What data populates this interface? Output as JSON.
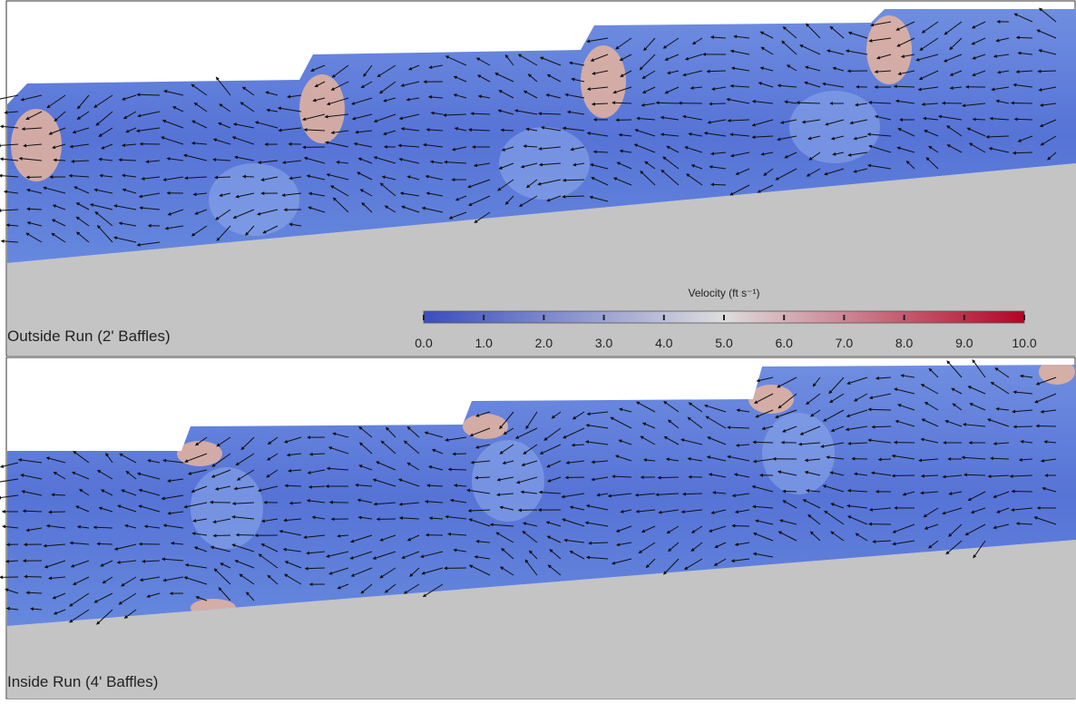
{
  "panels": [
    {
      "label": "Outside Run (2' Baffles)"
    },
    {
      "label": "Inside Run (4' Baffles)"
    }
  ],
  "colorbar": {
    "title": "Velocity (ft s⁻¹)",
    "lim": [
      0,
      10
    ],
    "colors": [
      "#3b4cc0",
      "#dddddd",
      "#b40426"
    ],
    "ticks": [
      {
        "value": 0,
        "label": "0.0"
      },
      {
        "value": 1,
        "label": "1.0"
      },
      {
        "value": 2,
        "label": "2.0"
      },
      {
        "value": 3,
        "label": "3.0"
      },
      {
        "value": 4,
        "label": "4.0"
      },
      {
        "value": 5,
        "label": "5.0"
      },
      {
        "value": 6,
        "label": "6.0"
      },
      {
        "value": 7,
        "label": "7.0"
      },
      {
        "value": 8,
        "label": "8.0"
      },
      {
        "value": 9,
        "label": "9.0"
      },
      {
        "value": 10,
        "label": "10.0"
      }
    ]
  }
}
